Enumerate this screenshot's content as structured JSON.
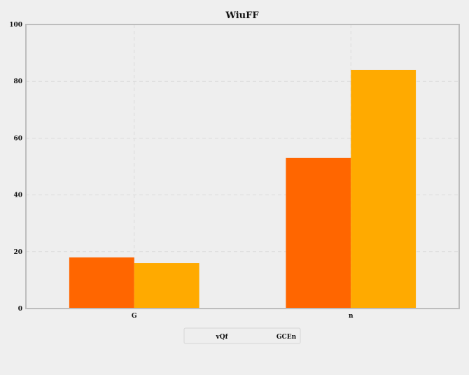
{
  "chart_data": {
    "type": "bar",
    "title": "WiuFF",
    "xlabel": "",
    "ylabel": "",
    "categories": [
      "G",
      "n"
    ],
    "series": [
      {
        "name": "vQf",
        "values": [
          18,
          53
        ],
        "color": "#ff6600"
      },
      {
        "name": "GCEn",
        "values": [
          16,
          84
        ],
        "color": "#ffaa00"
      }
    ],
    "ylim": [
      0,
      100
    ],
    "yticks": [
      0,
      20,
      40,
      60,
      80,
      100
    ],
    "grid": true,
    "legend": "bottom-center"
  }
}
